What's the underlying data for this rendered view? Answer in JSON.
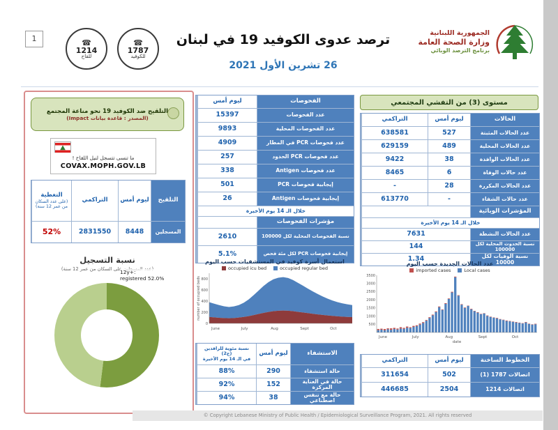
{
  "page": {
    "number": "1",
    "footer": "© Copyright Lebanese Ministry of Public Health / Epidemiological Surveillance Program, 2021. All rights reserved"
  },
  "header": {
    "ministry_line1": "الجمهورية اللبنانية",
    "ministry_line2": "وزارة الصحة العامة",
    "ministry_line3": "برنامج الترصد الوبائي",
    "title": "ترصد عدوى الكوفيد 19 في لبنان",
    "date": "26 تشرين الأول 2021",
    "hotline_vaccine": {
      "number": "1214",
      "label": "للقاح"
    },
    "hotline_covid": {
      "number": "1787",
      "label": "للكوفيد"
    }
  },
  "vaccination": {
    "title": "التلقيح ضد الكوفيد 19 نحو مناعة المجتمع",
    "source": "(المصدر : قاعدة بيانات Impact)",
    "reminder": "ما تنسى تتسجل لنيل اللقاح !",
    "site": "COVAX.MOPH.GOV.LB",
    "table": {
      "col_vaccination": "التلقيح",
      "col_yesterday": "ليوم أمس",
      "col_cumulative": "التراكمي",
      "coverage_main": "التغطية",
      "coverage_sub": "(على عدد السكان من عمر 12 سنة)",
      "row_label": "المسجلين",
      "row_yesterday": "8448",
      "row_cumulative": "2831550",
      "row_coverage": "52%"
    },
    "chart_title": "نسبة التسجيل",
    "chart_subtitle": "(عدد المسجلين على السكان من عمر 12 سنة)",
    "donut": {
      "pct": 52,
      "color_registered": "#7c9d3f",
      "color_rest": "#b9cf8e",
      "label_line1": "12y+:",
      "label_line2": "registered 52.0%"
    }
  },
  "tests": {
    "col_tests": "الفحوصات",
    "col_yesterday": "ليوم أمس",
    "rows": [
      {
        "value": "15397",
        "label": "عدد الفحوصات"
      },
      {
        "value": "9893",
        "label": "عدد الفحوصات المحلية"
      },
      {
        "value": "4909",
        "label": "عدد فحوصات PCR في المطار"
      },
      {
        "value": "257",
        "label": "عدد فحوصات PCR الحدود"
      },
      {
        "value": "338",
        "label": "عدد فحوصات Antigen"
      },
      {
        "value": "501",
        "label": "إيجابية فحوصات PCR"
      },
      {
        "value": "26",
        "label": "إيجابية فحوصات Antigen"
      }
    ],
    "period_note": "خلال الـ 14 يوم الأخيرة",
    "indicators_title": "مؤشرات الفحوصات",
    "indicator_rows": [
      {
        "value": "2610",
        "label": "نسبة الفحوصات المحلية لكل 100000"
      },
      {
        "value": "5.1%",
        "label": "إيجابية فحوصات PCR لكل مئة فحص"
      }
    ]
  },
  "hospitalization": {
    "col_pct_line1": "نسبة مئوية للراقدين (ج2)",
    "col_pct_line2": "في الـ 14 يوم الأخيرة",
    "col_yesterday": "ليوم أمس",
    "col_label": "الاستشفاء",
    "rows": [
      {
        "pct": "88%",
        "yesterday": "290",
        "label": "حالة استشفاء"
      },
      {
        "pct": "92%",
        "yesterday": "152",
        "label": "حالة في العناية المركزة"
      },
      {
        "pct": "94%",
        "yesterday": "38",
        "label": "حالة مع تنفس اصطناعي"
      }
    ]
  },
  "community_level": "مستوى (3) من التفشي المجتمعي",
  "cases": {
    "col_cumulative": "التراكمي",
    "col_yesterday": "ليوم أمس",
    "col_label": "الحالات",
    "rows": [
      {
        "cumulative": "638581",
        "yesterday": "527",
        "label": "عدد الحالات المثبتة"
      },
      {
        "cumulative": "629159",
        "yesterday": "489",
        "label": "عدد الحالات المحلية"
      },
      {
        "cumulative": "9422",
        "yesterday": "38",
        "label": "عدد الحالات الوافدة"
      },
      {
        "cumulative": "8465",
        "yesterday": "6",
        "label": "عدد حالات الوفاة"
      },
      {
        "cumulative": "-",
        "yesterday": "28",
        "label": "عدد الحالات المكررة"
      },
      {
        "cumulative": "613770",
        "yesterday": "-",
        "label": "عدد حالات الشفاء"
      }
    ]
  },
  "epi_indicators": {
    "title": "المؤشرات الوبائية",
    "period": "خلال الـ 14 يوم الأخيرة",
    "rows": [
      {
        "value": "7631",
        "label": "عدد الحالات النشطة"
      },
      {
        "value": "144",
        "label": "نسبة الحدوث المحلية لكل 100000"
      },
      {
        "value": "1.34",
        "label": "نسبة الوفيات لكل 10000"
      }
    ]
  },
  "hotlines": {
    "title": "الخطوط الساخنة",
    "col_cumulative": "التراكمي",
    "col_yesterday": "ليوم أمس",
    "rows": [
      {
        "cumulative": "311654",
        "yesterday": "502",
        "label": "اتصالات 1787 (1)"
      },
      {
        "cumulative": "446685",
        "yesterday": "2504",
        "label": "اتصالات 1214"
      }
    ]
  },
  "colors": {
    "header_blue": "#4f81bd",
    "value_blue": "#1f62ad",
    "green_box_bg": "#d8e4bd",
    "green_box_border": "#79973f",
    "panel_border_pink": "#d98d8d",
    "coverage_red": "#c00000",
    "icu_red": "#8e3b3b",
    "regular_blue": "#4f81bd",
    "imported_red": "#c0504d",
    "local_blue": "#4f81bd"
  },
  "chart_data": [
    {
      "id": "hospital-beds",
      "type": "area",
      "stacked": true,
      "title": "استعمال أسرة كوفيد في المستشفيات حسب اليوم",
      "ylabel": "number of occupied beds",
      "xlabel": "",
      "x_months": [
        "June",
        "July",
        "Aug",
        "Sept",
        "Oct"
      ],
      "month_pos": [
        0,
        0.203,
        0.412,
        0.622,
        0.824
      ],
      "ylim": [
        0,
        900
      ],
      "yticks": [
        0,
        200,
        400,
        600,
        800
      ],
      "series": [
        {
          "name": "occupied icu bed",
          "color": "#8e3b3b",
          "values": [
            115,
            108,
            100,
            95,
            92,
            96,
            104,
            115,
            130,
            148,
            168,
            188,
            205,
            218,
            227,
            230,
            226,
            218,
            207,
            196,
            184,
            172,
            161,
            151,
            142,
            134,
            127,
            121,
            116,
            112
          ]
        },
        {
          "name": "occupied regular bed",
          "color": "#4f81bd",
          "values": [
            265,
            245,
            228,
            212,
            202,
            208,
            224,
            255,
            300,
            358,
            420,
            482,
            534,
            572,
            592,
            600,
            588,
            558,
            520,
            480,
            440,
            402,
            366,
            332,
            302,
            276,
            255,
            238,
            226,
            216
          ]
        }
      ]
    },
    {
      "id": "new-cases",
      "type": "bar",
      "stacked": true,
      "title": "عدد الحالات الجديدة حسب اليوم",
      "xlabel": "date",
      "ylabel": "",
      "x_months": [
        "June",
        "July",
        "Aug",
        "Sept",
        "Oct"
      ],
      "month_pos": [
        0,
        0.203,
        0.412,
        0.622,
        0.824
      ],
      "ylim": [
        0,
        3500
      ],
      "yticks": [
        0,
        500,
        1000,
        1500,
        2000,
        2500,
        3000,
        3500
      ],
      "series": [
        {
          "name": "imported cases",
          "color": "#c0504d",
          "values": [
            70,
            60,
            80,
            60,
            90,
            70,
            60,
            80,
            60,
            70,
            50,
            60,
            50,
            60,
            50,
            40,
            50,
            40,
            40,
            40,
            30,
            40,
            30,
            40,
            40,
            30,
            30,
            30,
            20,
            30,
            20,
            30,
            20,
            20,
            30,
            20,
            20,
            30,
            20,
            20,
            30,
            20,
            20,
            30,
            20,
            20,
            30,
            20,
            20,
            30
          ]
        },
        {
          "name": "Local cases",
          "color": "#4f81bd",
          "values": [
            140,
            170,
            130,
            190,
            160,
            210,
            180,
            240,
            220,
            290,
            270,
            340,
            390,
            480,
            580,
            720,
            880,
            1050,
            1250,
            1550,
            1380,
            1750,
            2050,
            2450,
            3380,
            2250,
            1700,
            1500,
            1620,
            1420,
            1300,
            1210,
            1120,
            1160,
            1010,
            950,
            900,
            860,
            800,
            760,
            700,
            680,
            650,
            610,
            580,
            550,
            610,
            520,
            480,
            500
          ]
        }
      ]
    }
  ]
}
